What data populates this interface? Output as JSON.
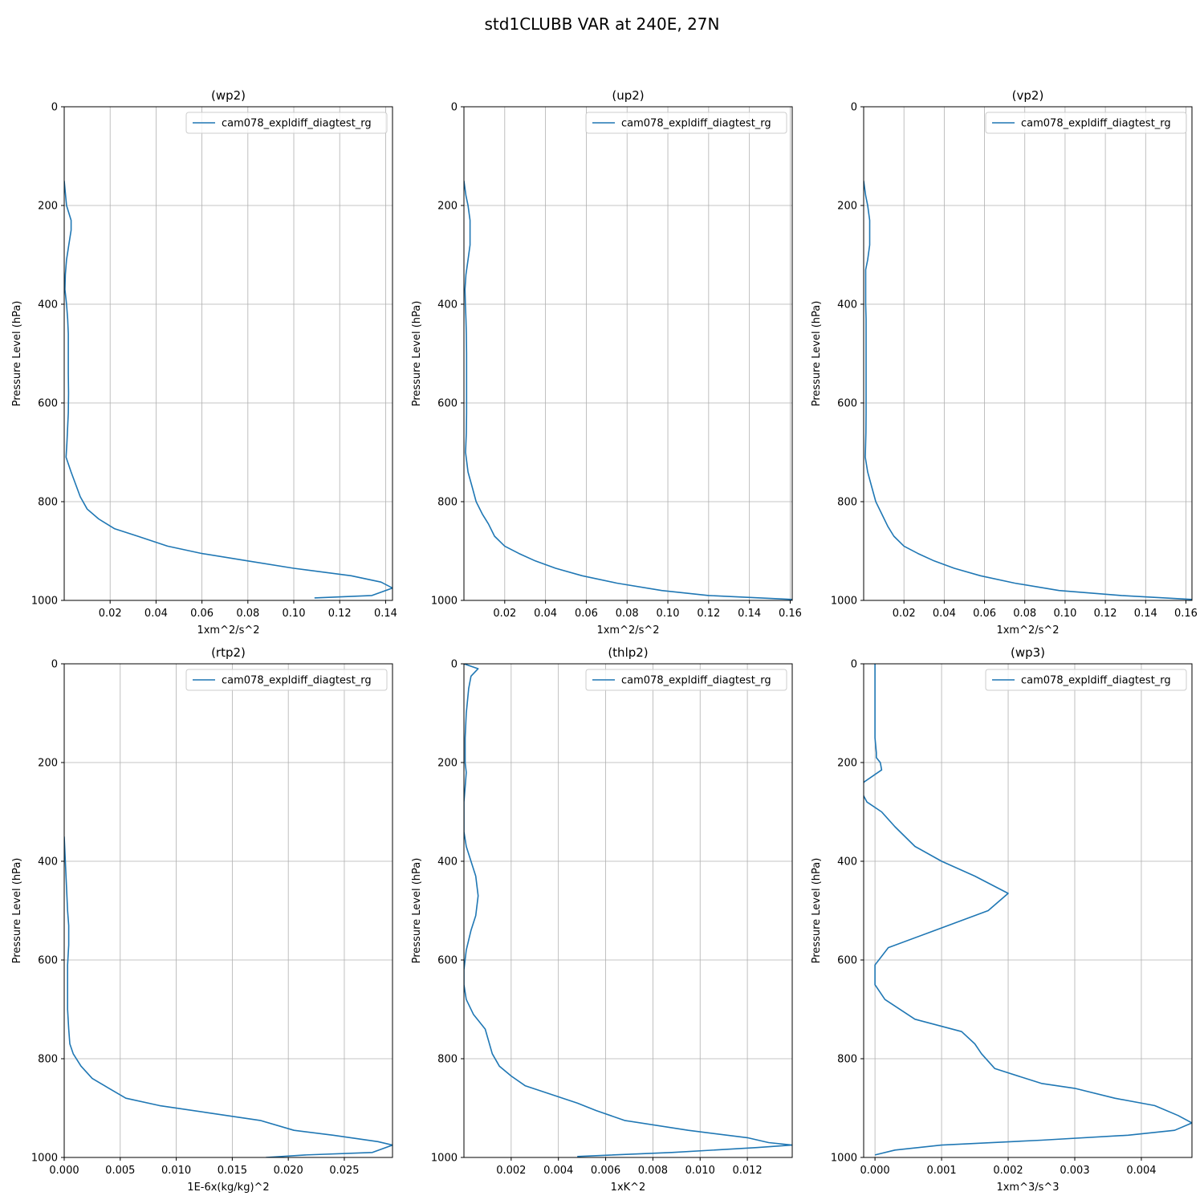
{
  "figure": {
    "title": "std1CLUBB VAR at 240E, 27N"
  },
  "chart_data": [
    {
      "type": "line",
      "title": "(wp2)",
      "xlabel": "1xm^2/s^2",
      "ylabel": "Pressure Level (hPa)",
      "xlim": [
        0,
        0.143
      ],
      "ylim": [
        1000,
        0
      ],
      "xticks": [
        "0.02",
        "0.04",
        "0.06",
        "0.08",
        "0.10",
        "0.12",
        "0.14"
      ],
      "xtick_values": [
        0.02,
        0.04,
        0.06,
        0.08,
        0.1,
        0.12,
        0.14
      ],
      "yticks": [
        "0",
        "200",
        "400",
        "600",
        "800",
        "1000"
      ],
      "ytick_values": [
        0,
        200,
        400,
        600,
        800,
        1000
      ],
      "grid": true,
      "legend": "top-right",
      "series": [
        {
          "name": "cam078_expldiff_diagtest_rg",
          "x": [
            0.0,
            0.001,
            0.003,
            0.003,
            0.002,
            0.001,
            0.0005,
            0.0003,
            0.001,
            0.0015,
            0.0018,
            0.0018,
            0.0018,
            0.0019,
            0.0018,
            0.0012,
            0.0008,
            0.003,
            0.007,
            0.01,
            0.015,
            0.022,
            0.032,
            0.045,
            0.06,
            0.08,
            0.1,
            0.125,
            0.138,
            0.143,
            0.134,
            0.109
          ],
          "y": [
            150,
            200,
            230,
            250,
            280,
            310,
            340,
            370,
            400,
            430,
            460,
            500,
            540,
            580,
            620,
            680,
            710,
            740,
            790,
            815,
            835,
            855,
            870,
            890,
            905,
            920,
            935,
            950,
            963,
            975,
            990,
            995
          ]
        }
      ]
    },
    {
      "type": "line",
      "title": "(up2)",
      "xlabel": "1xm^2/s^2",
      "ylabel": "Pressure Level (hPa)",
      "xlim": [
        0,
        0.161
      ],
      "ylim": [
        1000,
        0
      ],
      "xticks": [
        "0.02",
        "0.04",
        "0.06",
        "0.08",
        "0.10",
        "0.12",
        "0.14",
        "0.16"
      ],
      "xtick_values": [
        0.02,
        0.04,
        0.06,
        0.08,
        0.1,
        0.12,
        0.14,
        0.16
      ],
      "yticks": [
        "0",
        "200",
        "400",
        "600",
        "800",
        "1000"
      ],
      "ytick_values": [
        0,
        200,
        400,
        600,
        800,
        1000
      ],
      "grid": true,
      "legend": "top-right",
      "series": [
        {
          "name": "cam078_expldiff_diagtest_rg",
          "x": [
            0.0,
            0.001,
            0.002,
            0.003,
            0.003,
            0.003,
            0.002,
            0.001,
            0.0005,
            0.0007,
            0.001,
            0.0012,
            0.0013,
            0.0013,
            0.0013,
            0.0013,
            0.0012,
            0.0008,
            0.002,
            0.004,
            0.006,
            0.009,
            0.012,
            0.015,
            0.02,
            0.027,
            0.035,
            0.045,
            0.058,
            0.075,
            0.097,
            0.12,
            0.161
          ],
          "y": [
            150,
            180,
            200,
            230,
            260,
            280,
            310,
            340,
            370,
            400,
            430,
            460,
            500,
            540,
            580,
            620,
            660,
            700,
            740,
            770,
            800,
            825,
            845,
            870,
            890,
            905,
            920,
            935,
            950,
            965,
            980,
            990,
            998
          ]
        }
      ]
    },
    {
      "type": "line",
      "title": "(vp2)",
      "xlabel": "1xm^2/s^2",
      "ylabel": "Pressure Level (hPa)",
      "xlim": [
        0,
        0.163
      ],
      "ylim": [
        1000,
        0
      ],
      "xticks": [
        "0.02",
        "0.04",
        "0.06",
        "0.08",
        "0.10",
        "0.12",
        "0.14",
        "0.16"
      ],
      "xtick_values": [
        0.02,
        0.04,
        0.06,
        0.08,
        0.1,
        0.12,
        0.14,
        0.16
      ],
      "yticks": [
        "0",
        "200",
        "400",
        "600",
        "800",
        "1000"
      ],
      "ytick_values": [
        0,
        200,
        400,
        600,
        800,
        1000
      ],
      "grid": true,
      "legend": "top-right",
      "series": [
        {
          "name": "cam078_expldiff_diagtest_rg",
          "x": [
            0.0,
            0.001,
            0.002,
            0.003,
            0.003,
            0.003,
            0.002,
            0.001,
            0.001,
            0.001,
            0.0012,
            0.0012,
            0.0012,
            0.0012,
            0.0012,
            0.0012,
            0.0011,
            0.0008,
            0.002,
            0.004,
            0.006,
            0.009,
            0.012,
            0.015,
            0.02,
            0.027,
            0.035,
            0.045,
            0.058,
            0.075,
            0.097,
            0.128,
            0.163
          ],
          "y": [
            150,
            180,
            200,
            230,
            260,
            280,
            310,
            330,
            360,
            400,
            430,
            460,
            500,
            540,
            580,
            620,
            660,
            710,
            740,
            770,
            800,
            825,
            850,
            870,
            890,
            905,
            920,
            935,
            950,
            965,
            980,
            990,
            998
          ]
        }
      ]
    },
    {
      "type": "line",
      "title": "(rtp2)",
      "xlabel": "1E-6x(kg/kg)^2",
      "ylabel": "Pressure Level (hPa)",
      "xlim": [
        0,
        0.0293
      ],
      "ylim": [
        1000,
        0
      ],
      "xticks": [
        "0.000",
        "0.005",
        "0.010",
        "0.015",
        "0.020",
        "0.025"
      ],
      "xtick_values": [
        0,
        0.005,
        0.01,
        0.015,
        0.02,
        0.025
      ],
      "yticks": [
        "0",
        "200",
        "400",
        "600",
        "800",
        "1000"
      ],
      "ytick_values": [
        0,
        200,
        400,
        600,
        800,
        1000
      ],
      "grid": true,
      "legend": "top-right",
      "series": [
        {
          "name": "cam078_expldiff_diagtest_rg",
          "x": [
            0.0,
            0.0001,
            0.0002,
            0.0003,
            0.0004,
            0.0004,
            0.0003,
            0.0003,
            0.0003,
            0.0004,
            0.0005,
            0.0008,
            0.0015,
            0.0025,
            0.004,
            0.0055,
            0.0085,
            0.013,
            0.0175,
            0.0205,
            0.024,
            0.028,
            0.0293,
            0.0275,
            0.0215,
            0.018
          ],
          "y": [
            350,
            400,
            450,
            500,
            530,
            570,
            610,
            650,
            700,
            740,
            770,
            790,
            815,
            840,
            860,
            880,
            895,
            910,
            925,
            945,
            955,
            968,
            975,
            990,
            995,
            1000
          ]
        }
      ]
    },
    {
      "type": "line",
      "title": "(thlp2)",
      "xlabel": "1xK^2",
      "ylabel": "Pressure Level (hPa)",
      "xlim": [
        0,
        0.0139
      ],
      "ylim": [
        1000,
        0
      ],
      "xticks": [
        "0.002",
        "0.004",
        "0.006",
        "0.008",
        "0.010",
        "0.012"
      ],
      "xtick_values": [
        0.002,
        0.004,
        0.006,
        0.008,
        0.01,
        0.012
      ],
      "yticks": [
        "0",
        "200",
        "400",
        "600",
        "800",
        "1000"
      ],
      "ytick_values": [
        0,
        200,
        400,
        600,
        800,
        1000
      ],
      "grid": true,
      "legend": "top-right",
      "series": [
        {
          "name": "cam078_expldiff_diagtest_rg",
          "x": [
            0.0,
            0.0006,
            0.0003,
            0.0002,
            0.0001,
            5e-05,
            5e-05,
            5e-05,
            0.0001,
            5e-05,
            0.0,
            0.0,
            0.0,
            0.0,
            0.0001,
            0.0003,
            0.0005,
            0.0006,
            0.0005,
            0.0003,
            0.0001,
            0.0,
            0.0,
            0.0001,
            0.0004,
            0.0009,
            0.0012,
            0.0015,
            0.002,
            0.0026,
            0.0048,
            0.0056,
            0.0068,
            0.0095,
            0.012,
            0.0129,
            0.0139,
            0.0124,
            0.0088,
            0.0048
          ],
          "y": [
            0,
            10,
            25,
            50,
            100,
            150,
            190,
            200,
            220,
            250,
            280,
            300,
            320,
            340,
            370,
            400,
            430,
            470,
            510,
            540,
            580,
            620,
            650,
            680,
            710,
            740,
            790,
            815,
            835,
            855,
            890,
            905,
            925,
            945,
            960,
            970,
            975,
            980,
            990,
            998
          ]
        }
      ]
    },
    {
      "type": "line",
      "title": "(wp3)",
      "xlabel": "1xm^3/s^3",
      "ylabel": "Pressure Level (hPa)",
      "xlim": [
        -0.00017,
        0.00476
      ],
      "ylim": [
        1000,
        0
      ],
      "xticks": [
        "0.000",
        "0.001",
        "0.002",
        "0.003",
        "0.004"
      ],
      "xtick_values": [
        0,
        0.001,
        0.002,
        0.003,
        0.004
      ],
      "yticks": [
        "0",
        "200",
        "400",
        "600",
        "800",
        "1000"
      ],
      "ytick_values": [
        0,
        200,
        400,
        600,
        800,
        1000
      ],
      "grid": true,
      "legend": "top-right",
      "series": [
        {
          "name": "cam078_expldiff_diagtest_rg",
          "x": [
            0.0,
            0.0,
            2e-05,
            2e-05,
            8e-05,
            0.0001,
            -0.00017,
            -0.0002,
            -0.00012,
            0.0001,
            0.0003,
            0.0006,
            0.001,
            0.0015,
            0.002,
            0.0017,
            0.0009,
            0.0002,
            0.0,
            0.0,
            0.00015,
            0.0006,
            0.0013,
            0.0015,
            0.0016,
            0.0018,
            0.0025,
            0.003,
            0.0036,
            0.0042,
            0.00455,
            0.00476,
            0.0045,
            0.0038,
            0.0025,
            0.001,
            0.0003,
            0.0
          ],
          "y": [
            0,
            150,
            180,
            190,
            200,
            215,
            240,
            260,
            280,
            300,
            330,
            370,
            400,
            430,
            465,
            500,
            540,
            575,
            610,
            650,
            680,
            720,
            745,
            770,
            790,
            820,
            850,
            860,
            880,
            895,
            915,
            930,
            945,
            955,
            965,
            975,
            985,
            995
          ]
        }
      ]
    }
  ]
}
